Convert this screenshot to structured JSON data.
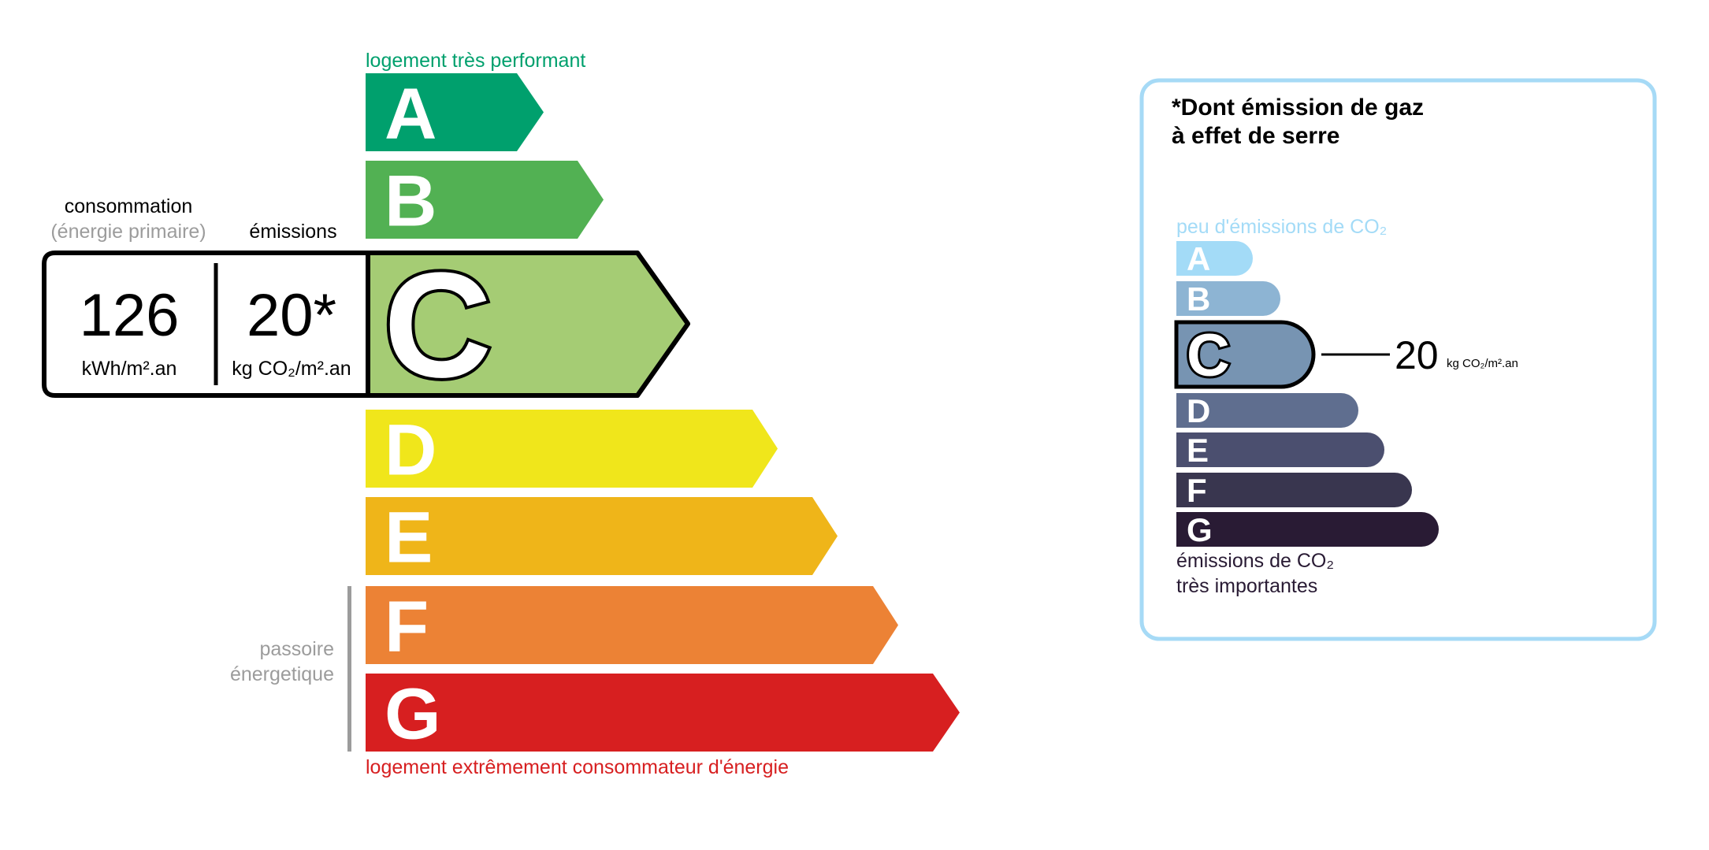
{
  "energy_label": {
    "top_caption": "logement très performant",
    "bottom_caption": "logement extrêmement consommateur d'énergie",
    "passoire_line1": "passoire",
    "passoire_line2": "énergetique",
    "consumption_header": "consommation",
    "consumption_subheader": "(énergie primaire)",
    "emissions_header": "émissions",
    "consumption_value": "126",
    "consumption_unit": "kWh/m².an",
    "emissions_value": "20*",
    "emissions_unit": "kg CO₂/m².an",
    "current_class": "C",
    "classes": [
      {
        "letter": "A",
        "color": "#00a06d"
      },
      {
        "letter": "B",
        "color": "#52b153"
      },
      {
        "letter": "C",
        "color": "#a5cc74"
      },
      {
        "letter": "D",
        "color": "#f0e61b"
      },
      {
        "letter": "E",
        "color": "#efb519"
      },
      {
        "letter": "F",
        "color": "#ec8235"
      },
      {
        "letter": "G",
        "color": "#d71f20"
      }
    ],
    "colors": {
      "top_caption": "#00a06d",
      "bottom_caption": "#d71f20",
      "muted": "#9c9c9c"
    }
  },
  "ges_panel": {
    "title_line1": "*Dont émission de gaz",
    "title_line2": "à effet de serre",
    "top_caption": "peu d'émissions de CO₂",
    "bottom_caption_line1": "émissions de CO₂",
    "bottom_caption_line2": "très importantes",
    "current_class": "C",
    "value": "20",
    "unit": "kg CO₂/m².an",
    "classes": [
      {
        "letter": "A",
        "color": "#a3dbf7"
      },
      {
        "letter": "B",
        "color": "#8db4d3"
      },
      {
        "letter": "C",
        "color": "#7794b2"
      },
      {
        "letter": "D",
        "color": "#5f6e8f"
      },
      {
        "letter": "E",
        "color": "#4b4f6f"
      },
      {
        "letter": "F",
        "color": "#39364f"
      },
      {
        "letter": "G",
        "color": "#291b34"
      }
    ],
    "colors": {
      "border": "#a6daf6",
      "top_caption": "#a3dbf7",
      "bottom_caption": "#291b34"
    }
  }
}
